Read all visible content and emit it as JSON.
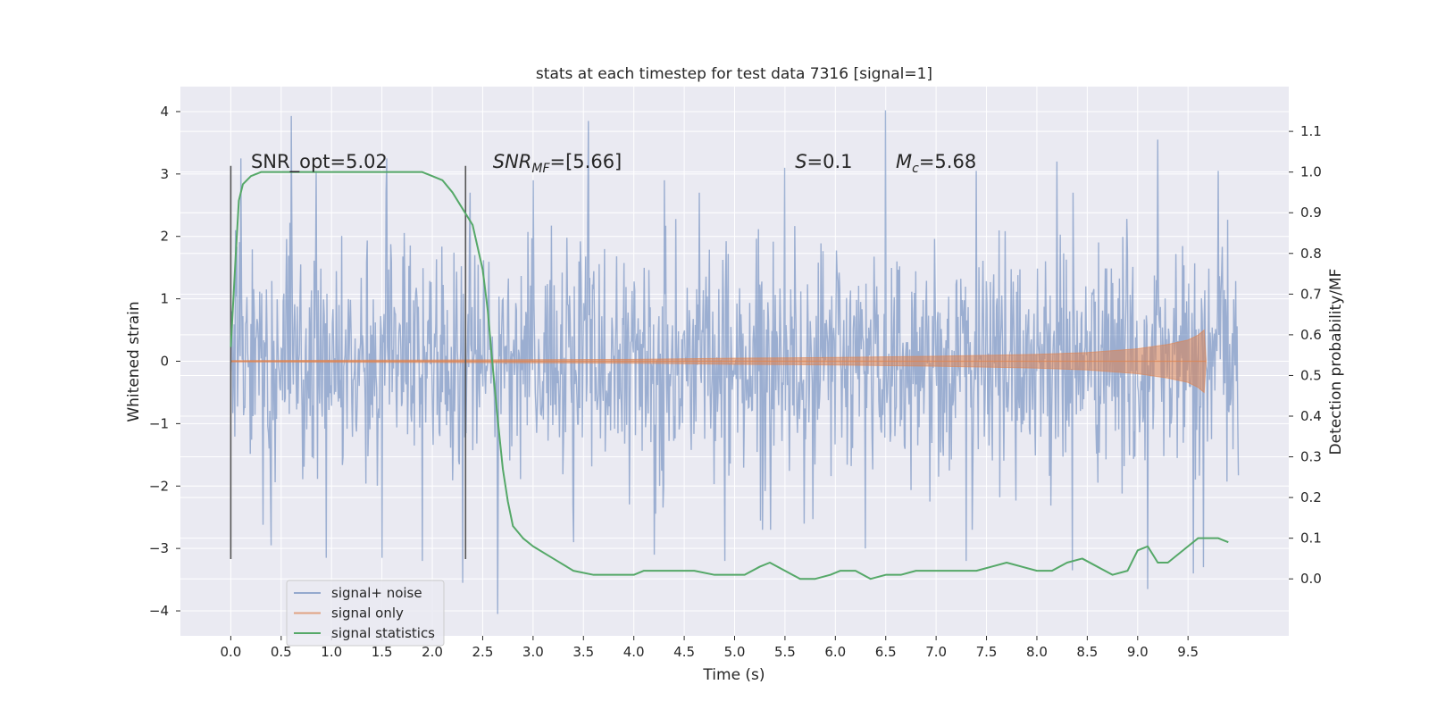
{
  "chart_data": {
    "type": "line",
    "title": "stats at each timestep for test data 7316 [signal=1]",
    "xlabel": "Time (s)",
    "ylabel": "Whitened strain",
    "ylabel_right": "Detection probability/MF",
    "xlim": [
      -0.5,
      10.5
    ],
    "ylim": [
      -4.4,
      4.4
    ],
    "ylim_right": [
      -0.14,
      1.21
    ],
    "x_ticks": [
      0.0,
      0.5,
      1.0,
      1.5,
      2.0,
      2.5,
      3.0,
      3.5,
      4.0,
      4.5,
      5.0,
      5.5,
      6.0,
      6.5,
      7.0,
      7.5,
      8.0,
      8.5,
      9.0,
      9.5
    ],
    "x_tick_labels": [
      "0.0",
      "0.5",
      "1.0",
      "1.5",
      "2.0",
      "2.5",
      "3.0",
      "3.5",
      "4.0",
      "4.5",
      "5.0",
      "5.5",
      "6.0",
      "6.5",
      "7.0",
      "7.5",
      "8.0",
      "8.5",
      "9.0",
      "9.5"
    ],
    "y_ticks": [
      4,
      3,
      2,
      1,
      0,
      -1,
      -2,
      -3,
      -4
    ],
    "y_tick_labels": [
      "4",
      "3",
      "2",
      "1",
      "0",
      "−1",
      "−2",
      "−3",
      "−4"
    ],
    "y_right_ticks": [
      1.1,
      1.0,
      0.9,
      0.8,
      0.7,
      0.6,
      0.5,
      0.4,
      0.3,
      0.2,
      0.1,
      0.0
    ],
    "y_right_tick_labels": [
      "1.1",
      "1.0",
      "0.9",
      "0.8",
      "0.7",
      "0.6",
      "0.5",
      "0.4",
      "0.3",
      "0.2",
      "0.1",
      "0.0"
    ],
    "grid": true,
    "legend_position": "lower-left",
    "series": [
      {
        "name": "signal+ noise",
        "color": "#4c72b0",
        "axis": "left",
        "kind": "noise-band",
        "x_range": [
          0.0,
          10.0
        ],
        "approx_std": 1.0,
        "peak_samples": [
          {
            "x": 0.05,
            "y": 2.1
          },
          {
            "x": 0.1,
            "y": 3.25
          },
          {
            "x": 0.6,
            "y": 3.93
          },
          {
            "x": 0.85,
            "y": 3.05
          },
          {
            "x": 1.55,
            "y": 3.25
          },
          {
            "x": 2.3,
            "y": 3.1
          },
          {
            "x": 3.0,
            "y": 2.9
          },
          {
            "x": 3.55,
            "y": 3.85
          },
          {
            "x": 4.3,
            "y": 2.9
          },
          {
            "x": 5.5,
            "y": 3.1
          },
          {
            "x": 6.5,
            "y": 4.02
          },
          {
            "x": 7.4,
            "y": 3.05
          },
          {
            "x": 8.2,
            "y": 3.2
          },
          {
            "x": 9.2,
            "y": 3.55
          },
          {
            "x": 9.8,
            "y": 3.05
          },
          {
            "x": 0.4,
            "y": -2.95
          },
          {
            "x": 0.95,
            "y": -3.15
          },
          {
            "x": 1.5,
            "y": -3.15
          },
          {
            "x": 1.9,
            "y": -3.2
          },
          {
            "x": 2.3,
            "y": -3.55
          },
          {
            "x": 2.65,
            "y": -4.05
          },
          {
            "x": 3.4,
            "y": -2.9
          },
          {
            "x": 4.2,
            "y": -3.1
          },
          {
            "x": 4.9,
            "y": -3.2
          },
          {
            "x": 6.3,
            "y": -3.0
          },
          {
            "x": 7.3,
            "y": -3.2
          },
          {
            "x": 8.35,
            "y": -3.35
          },
          {
            "x": 9.1,
            "y": -3.65
          },
          {
            "x": 9.55,
            "y": -3.4
          },
          {
            "x": 9.65,
            "y": -3.3
          }
        ]
      },
      {
        "name": "signal only",
        "color": "#dd8452",
        "axis": "left",
        "kind": "chirp-envelope",
        "envelope": [
          {
            "x": 0.0,
            "y": 0.01
          },
          {
            "x": 2.0,
            "y": 0.02
          },
          {
            "x": 4.0,
            "y": 0.03
          },
          {
            "x": 5.0,
            "y": 0.05
          },
          {
            "x": 6.0,
            "y": 0.06
          },
          {
            "x": 7.0,
            "y": 0.08
          },
          {
            "x": 8.0,
            "y": 0.11
          },
          {
            "x": 8.5,
            "y": 0.14
          },
          {
            "x": 9.0,
            "y": 0.2
          },
          {
            "x": 9.3,
            "y": 0.27
          },
          {
            "x": 9.5,
            "y": 0.34
          },
          {
            "x": 9.6,
            "y": 0.42
          },
          {
            "x": 9.66,
            "y": 0.5
          },
          {
            "x": 9.68,
            "y": 0.0
          }
        ]
      },
      {
        "name": "signal statistics",
        "color": "#55a868",
        "axis": "right",
        "x": [
          0.0,
          0.05,
          0.08,
          0.12,
          0.2,
          0.3,
          0.5,
          0.8,
          1.0,
          1.2,
          1.5,
          1.8,
          1.9,
          2.0,
          2.1,
          2.2,
          2.3,
          2.4,
          2.5,
          2.55,
          2.6,
          2.65,
          2.7,
          2.75,
          2.8,
          2.9,
          3.0,
          3.2,
          3.4,
          3.6,
          3.8,
          4.0,
          4.1,
          4.2,
          4.4,
          4.6,
          4.8,
          4.95,
          5.1,
          5.25,
          5.35,
          5.5,
          5.65,
          5.8,
          5.95,
          6.05,
          6.2,
          6.35,
          6.5,
          6.65,
          6.8,
          7.0,
          7.2,
          7.4,
          7.55,
          7.7,
          7.85,
          8.0,
          8.15,
          8.3,
          8.45,
          8.6,
          8.75,
          8.9,
          9.0,
          9.1,
          9.2,
          9.3,
          9.4,
          9.5,
          9.6,
          9.7,
          9.8,
          9.9
        ],
        "values": [
          0.57,
          0.8,
          0.93,
          0.97,
          0.99,
          1.0,
          1.0,
          1.0,
          1.0,
          1.0,
          1.0,
          1.0,
          1.0,
          0.99,
          0.98,
          0.95,
          0.91,
          0.87,
          0.76,
          0.66,
          0.52,
          0.39,
          0.27,
          0.19,
          0.13,
          0.1,
          0.08,
          0.05,
          0.02,
          0.01,
          0.01,
          0.01,
          0.02,
          0.02,
          0.02,
          0.02,
          0.01,
          0.01,
          0.01,
          0.03,
          0.04,
          0.02,
          0.0,
          0.0,
          0.01,
          0.02,
          0.02,
          0.0,
          0.01,
          0.01,
          0.02,
          0.02,
          0.02,
          0.02,
          0.03,
          0.04,
          0.03,
          0.02,
          0.02,
          0.04,
          0.05,
          0.03,
          0.01,
          0.02,
          0.07,
          0.08,
          0.04,
          0.04,
          0.06,
          0.08,
          0.1,
          0.1,
          0.1,
          0.09
        ]
      }
    ],
    "vertical_markers": [
      {
        "x": 0.0,
        "y_range": [
          -3.17,
          3.13
        ],
        "color": "#555555"
      },
      {
        "x": 2.33,
        "y_range": [
          -3.17,
          3.13
        ],
        "color": "#555555"
      }
    ],
    "annotations": [
      {
        "text": "SNR_opt=5.02",
        "x": 0.2,
        "y": 3.1
      },
      {
        "text": "SNR",
        "sub": "MF",
        "suffix": "=[5.66]",
        "italic": true,
        "x": 2.6,
        "y": 3.1
      },
      {
        "text": "S",
        "suffix": "=0.1",
        "italic": true,
        "x": 5.6,
        "y": 3.1
      },
      {
        "text": "M",
        "sub": "c",
        "suffix": "=5.68",
        "italic": true,
        "x": 6.6,
        "y": 3.1
      }
    ],
    "legend": [
      {
        "label": "signal+ noise",
        "color": "#4c72b0"
      },
      {
        "label": "signal only",
        "color": "#dd8452"
      },
      {
        "label": "signal statistics",
        "color": "#55a868"
      }
    ]
  },
  "colors": {
    "plot_bg": "#eaeaf2",
    "grid": "#ffffff",
    "text": "#262626"
  }
}
